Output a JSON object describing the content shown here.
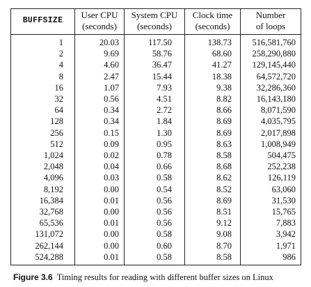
{
  "table": {
    "headers": [
      [
        "BUFFSIZE"
      ],
      [
        "User CPU",
        "(seconds)"
      ],
      [
        "System CPU",
        "(seconds)"
      ],
      [
        "Clock time",
        "(seconds)"
      ],
      [
        "Number",
        "of loops"
      ]
    ],
    "rows": [
      [
        "1",
        "20.03",
        "117.50",
        "138.73",
        "516,581,760"
      ],
      [
        "2",
        "9.69",
        "58.76",
        "68.60",
        "258,290,880"
      ],
      [
        "4",
        "4.60",
        "36.47",
        "41.27",
        "129,145,440"
      ],
      [
        "8",
        "2.47",
        "15.44",
        "18.38",
        "64,572,720"
      ],
      [
        "16",
        "1.07",
        "7.93",
        "9.38",
        "32,286,360"
      ],
      [
        "32",
        "0.56",
        "4.51",
        "8.82",
        "16,143,180"
      ],
      [
        "64",
        "0.34",
        "2.72",
        "8.66",
        "8,071,590"
      ],
      [
        "128",
        "0.34",
        "1.84",
        "8.69",
        "4,035,795"
      ],
      [
        "256",
        "0.15",
        "1.30",
        "8.69",
        "2,017,898"
      ],
      [
        "512",
        "0.09",
        "0.95",
        "8.63",
        "1,008,949"
      ],
      [
        "1,024",
        "0.02",
        "0.78",
        "8.58",
        "504,475"
      ],
      [
        "2,048",
        "0.04",
        "0.66",
        "8.68",
        "252,238"
      ],
      [
        "4,096",
        "0.03",
        "0.58",
        "8.62",
        "126,119"
      ],
      [
        "8,192",
        "0.00",
        "0.54",
        "8.52",
        "63,060"
      ],
      [
        "16,384",
        "0.01",
        "0.56",
        "8.69",
        "31,530"
      ],
      [
        "32,768",
        "0.00",
        "0.56",
        "8.51",
        "15,765"
      ],
      [
        "65,536",
        "0.01",
        "0.56",
        "9.12",
        "7,883"
      ],
      [
        "131,072",
        "0.00",
        "0.58",
        "9.08",
        "3,942"
      ],
      [
        "262,144",
        "0.00",
        "0.60",
        "8.70",
        "1,971"
      ],
      [
        "524,288",
        "0.01",
        "0.58",
        "8.58",
        "986"
      ]
    ]
  },
  "caption": {
    "label": "Figure 3.6",
    "text": "Timing results for reading with different buffer sizes on Linux"
  }
}
